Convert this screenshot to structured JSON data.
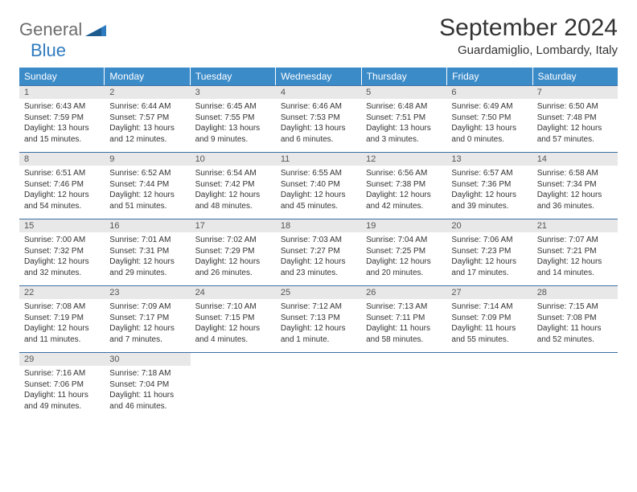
{
  "logo": {
    "text1": "General",
    "text2": "Blue",
    "shape_color": "#2f7bbf",
    "text1_color": "#6d6d6d",
    "text2_color": "#2f7bbf"
  },
  "header": {
    "month_title": "September 2024",
    "location": "Guardamiglio, Lombardy, Italy"
  },
  "colors": {
    "weekday_bg": "#3b8bc9",
    "weekday_text": "#ffffff",
    "daynum_bg": "#e8e8e8",
    "row_border": "#3b6fa0",
    "body_text": "#333333"
  },
  "weekdays": [
    "Sunday",
    "Monday",
    "Tuesday",
    "Wednesday",
    "Thursday",
    "Friday",
    "Saturday"
  ],
  "weeks": [
    [
      {
        "n": "1",
        "sr": "Sunrise: 6:43 AM",
        "ss": "Sunset: 7:59 PM",
        "d1": "Daylight: 13 hours",
        "d2": "and 15 minutes."
      },
      {
        "n": "2",
        "sr": "Sunrise: 6:44 AM",
        "ss": "Sunset: 7:57 PM",
        "d1": "Daylight: 13 hours",
        "d2": "and 12 minutes."
      },
      {
        "n": "3",
        "sr": "Sunrise: 6:45 AM",
        "ss": "Sunset: 7:55 PM",
        "d1": "Daylight: 13 hours",
        "d2": "and 9 minutes."
      },
      {
        "n": "4",
        "sr": "Sunrise: 6:46 AM",
        "ss": "Sunset: 7:53 PM",
        "d1": "Daylight: 13 hours",
        "d2": "and 6 minutes."
      },
      {
        "n": "5",
        "sr": "Sunrise: 6:48 AM",
        "ss": "Sunset: 7:51 PM",
        "d1": "Daylight: 13 hours",
        "d2": "and 3 minutes."
      },
      {
        "n": "6",
        "sr": "Sunrise: 6:49 AM",
        "ss": "Sunset: 7:50 PM",
        "d1": "Daylight: 13 hours",
        "d2": "and 0 minutes."
      },
      {
        "n": "7",
        "sr": "Sunrise: 6:50 AM",
        "ss": "Sunset: 7:48 PM",
        "d1": "Daylight: 12 hours",
        "d2": "and 57 minutes."
      }
    ],
    [
      {
        "n": "8",
        "sr": "Sunrise: 6:51 AM",
        "ss": "Sunset: 7:46 PM",
        "d1": "Daylight: 12 hours",
        "d2": "and 54 minutes."
      },
      {
        "n": "9",
        "sr": "Sunrise: 6:52 AM",
        "ss": "Sunset: 7:44 PM",
        "d1": "Daylight: 12 hours",
        "d2": "and 51 minutes."
      },
      {
        "n": "10",
        "sr": "Sunrise: 6:54 AM",
        "ss": "Sunset: 7:42 PM",
        "d1": "Daylight: 12 hours",
        "d2": "and 48 minutes."
      },
      {
        "n": "11",
        "sr": "Sunrise: 6:55 AM",
        "ss": "Sunset: 7:40 PM",
        "d1": "Daylight: 12 hours",
        "d2": "and 45 minutes."
      },
      {
        "n": "12",
        "sr": "Sunrise: 6:56 AM",
        "ss": "Sunset: 7:38 PM",
        "d1": "Daylight: 12 hours",
        "d2": "and 42 minutes."
      },
      {
        "n": "13",
        "sr": "Sunrise: 6:57 AM",
        "ss": "Sunset: 7:36 PM",
        "d1": "Daylight: 12 hours",
        "d2": "and 39 minutes."
      },
      {
        "n": "14",
        "sr": "Sunrise: 6:58 AM",
        "ss": "Sunset: 7:34 PM",
        "d1": "Daylight: 12 hours",
        "d2": "and 36 minutes."
      }
    ],
    [
      {
        "n": "15",
        "sr": "Sunrise: 7:00 AM",
        "ss": "Sunset: 7:32 PM",
        "d1": "Daylight: 12 hours",
        "d2": "and 32 minutes."
      },
      {
        "n": "16",
        "sr": "Sunrise: 7:01 AM",
        "ss": "Sunset: 7:31 PM",
        "d1": "Daylight: 12 hours",
        "d2": "and 29 minutes."
      },
      {
        "n": "17",
        "sr": "Sunrise: 7:02 AM",
        "ss": "Sunset: 7:29 PM",
        "d1": "Daylight: 12 hours",
        "d2": "and 26 minutes."
      },
      {
        "n": "18",
        "sr": "Sunrise: 7:03 AM",
        "ss": "Sunset: 7:27 PM",
        "d1": "Daylight: 12 hours",
        "d2": "and 23 minutes."
      },
      {
        "n": "19",
        "sr": "Sunrise: 7:04 AM",
        "ss": "Sunset: 7:25 PM",
        "d1": "Daylight: 12 hours",
        "d2": "and 20 minutes."
      },
      {
        "n": "20",
        "sr": "Sunrise: 7:06 AM",
        "ss": "Sunset: 7:23 PM",
        "d1": "Daylight: 12 hours",
        "d2": "and 17 minutes."
      },
      {
        "n": "21",
        "sr": "Sunrise: 7:07 AM",
        "ss": "Sunset: 7:21 PM",
        "d1": "Daylight: 12 hours",
        "d2": "and 14 minutes."
      }
    ],
    [
      {
        "n": "22",
        "sr": "Sunrise: 7:08 AM",
        "ss": "Sunset: 7:19 PM",
        "d1": "Daylight: 12 hours",
        "d2": "and 11 minutes."
      },
      {
        "n": "23",
        "sr": "Sunrise: 7:09 AM",
        "ss": "Sunset: 7:17 PM",
        "d1": "Daylight: 12 hours",
        "d2": "and 7 minutes."
      },
      {
        "n": "24",
        "sr": "Sunrise: 7:10 AM",
        "ss": "Sunset: 7:15 PM",
        "d1": "Daylight: 12 hours",
        "d2": "and 4 minutes."
      },
      {
        "n": "25",
        "sr": "Sunrise: 7:12 AM",
        "ss": "Sunset: 7:13 PM",
        "d1": "Daylight: 12 hours",
        "d2": "and 1 minute."
      },
      {
        "n": "26",
        "sr": "Sunrise: 7:13 AM",
        "ss": "Sunset: 7:11 PM",
        "d1": "Daylight: 11 hours",
        "d2": "and 58 minutes."
      },
      {
        "n": "27",
        "sr": "Sunrise: 7:14 AM",
        "ss": "Sunset: 7:09 PM",
        "d1": "Daylight: 11 hours",
        "d2": "and 55 minutes."
      },
      {
        "n": "28",
        "sr": "Sunrise: 7:15 AM",
        "ss": "Sunset: 7:08 PM",
        "d1": "Daylight: 11 hours",
        "d2": "and 52 minutes."
      }
    ],
    [
      {
        "n": "29",
        "sr": "Sunrise: 7:16 AM",
        "ss": "Sunset: 7:06 PM",
        "d1": "Daylight: 11 hours",
        "d2": "and 49 minutes."
      },
      {
        "n": "30",
        "sr": "Sunrise: 7:18 AM",
        "ss": "Sunset: 7:04 PM",
        "d1": "Daylight: 11 hours",
        "d2": "and 46 minutes."
      },
      null,
      null,
      null,
      null,
      null
    ]
  ]
}
